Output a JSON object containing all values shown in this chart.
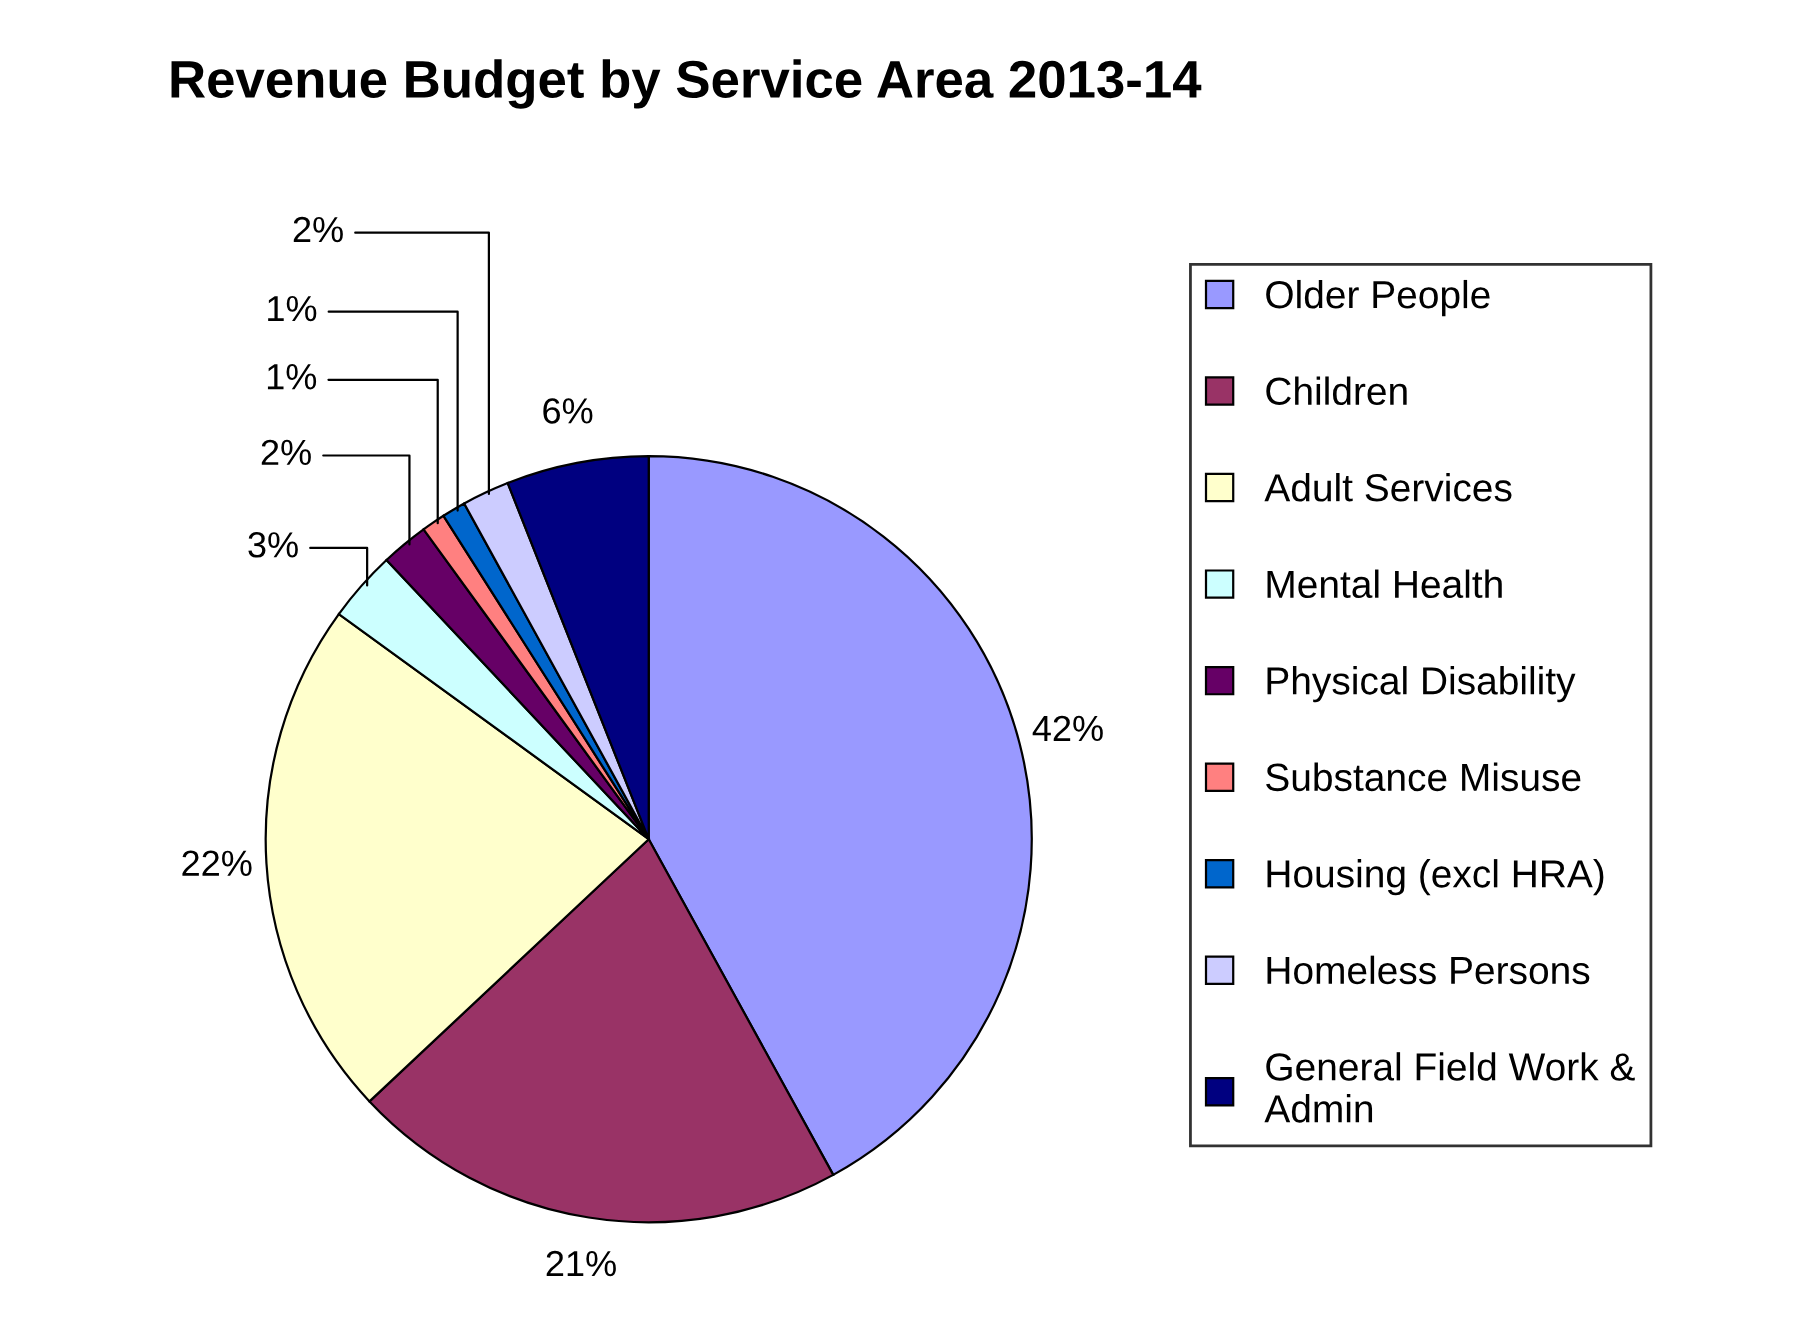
{
  "chart_data": {
    "type": "pie",
    "title": "Revenue Budget by Service Area 2013-14",
    "categories": [
      "Older People",
      "Children",
      "Adult Services",
      "Mental Health",
      "Physical Disability",
      "Substance Misuse",
      "Housing (excl HRA)",
      "Homeless Persons",
      "General Field Work & Admin"
    ],
    "values": [
      42,
      21,
      22,
      3,
      2,
      1,
      1,
      2,
      6
    ],
    "colors": [
      "#9999ff",
      "#993366",
      "#ffffcc",
      "#ccffff",
      "#660066",
      "#ff8080",
      "#0066cc",
      "#ccccff",
      "#000080"
    ],
    "value_labels": [
      "42%",
      "21%",
      "22%",
      "3%",
      "2%",
      "1%",
      "1%",
      "2%",
      "6%"
    ],
    "legend": "right"
  }
}
